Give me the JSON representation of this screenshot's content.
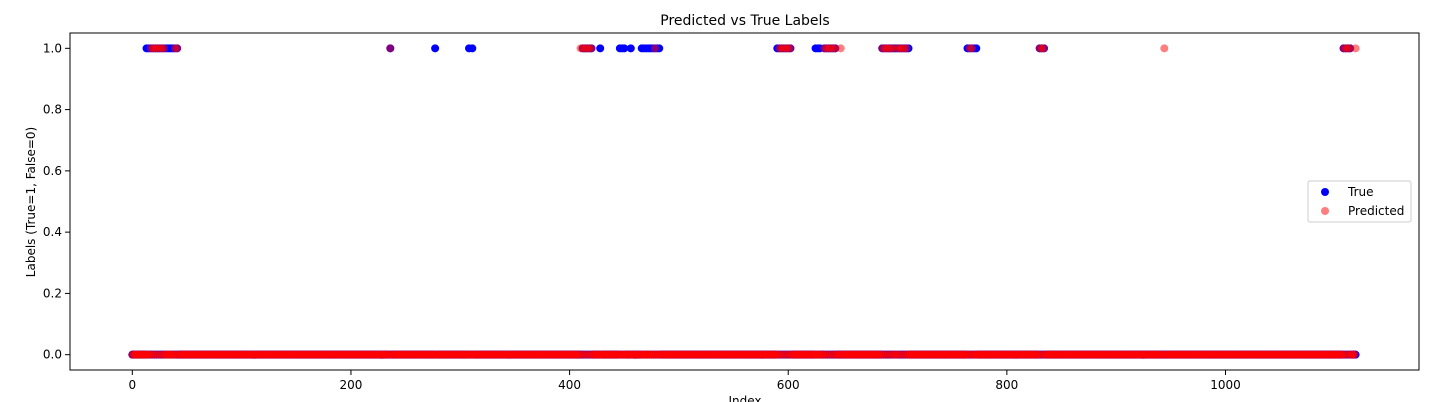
{
  "chart_data": {
    "type": "scatter",
    "title": "Predicted vs True Labels",
    "xlabel": "Index",
    "ylabel": "Labels (True=1, False=0)",
    "xlim": [
      -57,
      1177
    ],
    "ylim": [
      -0.05,
      1.05
    ],
    "xticks": [
      0,
      200,
      400,
      600,
      800,
      1000
    ],
    "yticks": [
      0.0,
      0.2,
      0.4,
      0.6,
      0.8,
      1.0
    ],
    "xtick_labels": [
      "0",
      "200",
      "400",
      "600",
      "800",
      "1000"
    ],
    "ytick_labels": [
      "0.0",
      "0.2",
      "0.4",
      "0.6",
      "0.8",
      "1.0"
    ],
    "legend_position": "center-right",
    "n_points": 1120,
    "series": [
      {
        "name": "True",
        "color": "#0000ff",
        "alpha": 1.0,
        "ones": [
          13,
          15,
          17,
          19,
          21,
          23,
          25,
          27,
          29,
          31,
          33,
          35,
          37,
          39,
          41,
          236,
          277,
          308,
          311,
          412,
          414,
          416,
          418,
          420,
          428,
          446,
          448,
          450,
          456,
          466,
          468,
          470,
          472,
          474,
          476,
          478,
          480,
          482,
          590,
          592,
          594,
          596,
          598,
          600,
          602,
          625,
          627,
          629,
          633,
          635,
          637,
          639,
          641,
          643,
          686,
          688,
          690,
          692,
          694,
          696,
          698,
          700,
          702,
          704,
          706,
          708,
          710,
          764,
          766,
          768,
          770,
          772,
          830,
          832,
          834,
          1108,
          1110,
          1112,
          1114
        ]
      },
      {
        "name": "Predicted",
        "color": "#ff0000",
        "alpha": 0.5,
        "ones": [
          17,
          19,
          21,
          23,
          25,
          27,
          29,
          39,
          41,
          236,
          410,
          412,
          414,
          416,
          418,
          420,
          478,
          592,
          594,
          596,
          598,
          600,
          602,
          633,
          635,
          637,
          639,
          641,
          643,
          648,
          686,
          688,
          690,
          692,
          694,
          696,
          700,
          702,
          704,
          706,
          708,
          766,
          768,
          830,
          832,
          834,
          944,
          1108,
          1110,
          1112,
          1114,
          1119
        ]
      }
    ]
  }
}
